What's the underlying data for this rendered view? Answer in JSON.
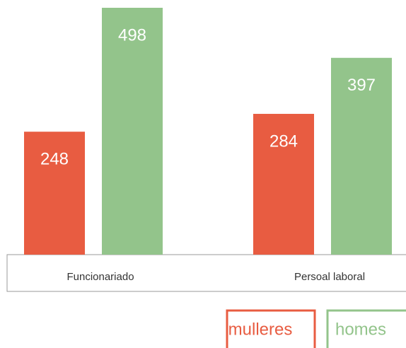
{
  "chart_data": {
    "type": "bar",
    "categories": [
      "Funcionariado",
      "Persoal laboral"
    ],
    "series": [
      {
        "name": "mulleres",
        "color": "#e85c41",
        "values": [
          248,
          284
        ]
      },
      {
        "name": "homes",
        "color": "#93c48b",
        "values": [
          498,
          397
        ]
      }
    ]
  }
}
